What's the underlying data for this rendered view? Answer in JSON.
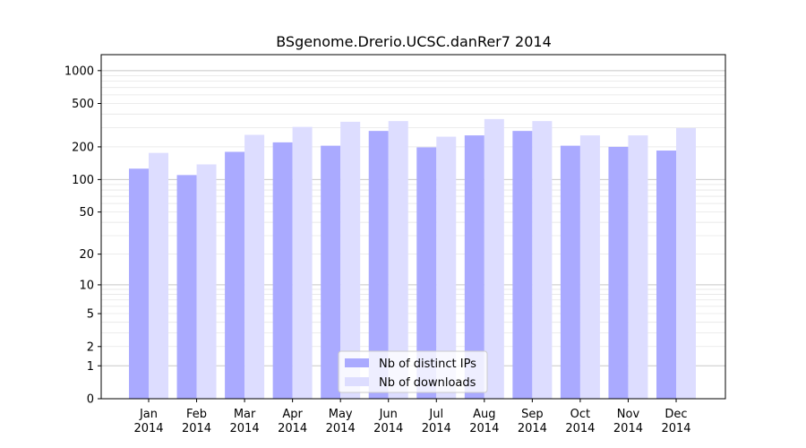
{
  "chart_data": {
    "type": "bar",
    "title": "BSgenome.Drerio.UCSC.danRer7 2014",
    "xlabel": "",
    "ylabel": "",
    "yscale": "log1p",
    "ylim": [
      0,
      1400
    ],
    "yticks": [
      0,
      1,
      2,
      5,
      10,
      20,
      50,
      100,
      200,
      500,
      1000
    ],
    "grid": true,
    "legend_position": "bottom-center",
    "categories": [
      [
        "Jan",
        "2014"
      ],
      [
        "Feb",
        "2014"
      ],
      [
        "Mar",
        "2014"
      ],
      [
        "Apr",
        "2014"
      ],
      [
        "May",
        "2014"
      ],
      [
        "Jun",
        "2014"
      ],
      [
        "Jul",
        "2014"
      ],
      [
        "Aug",
        "2014"
      ],
      [
        "Sep",
        "2014"
      ],
      [
        "Oct",
        "2014"
      ],
      [
        "Nov",
        "2014"
      ],
      [
        "Dec",
        "2014"
      ]
    ],
    "series": [
      {
        "name": "Nb of distinct IPs",
        "color": "#aaaaff",
        "values": [
          126,
          110,
          180,
          220,
          205,
          280,
          198,
          255,
          280,
          205,
          200,
          185
        ]
      },
      {
        "name": "Nb of downloads",
        "color": "#ddddff",
        "values": [
          176,
          138,
          258,
          305,
          340,
          345,
          248,
          360,
          345,
          255,
          255,
          298
        ]
      }
    ]
  }
}
